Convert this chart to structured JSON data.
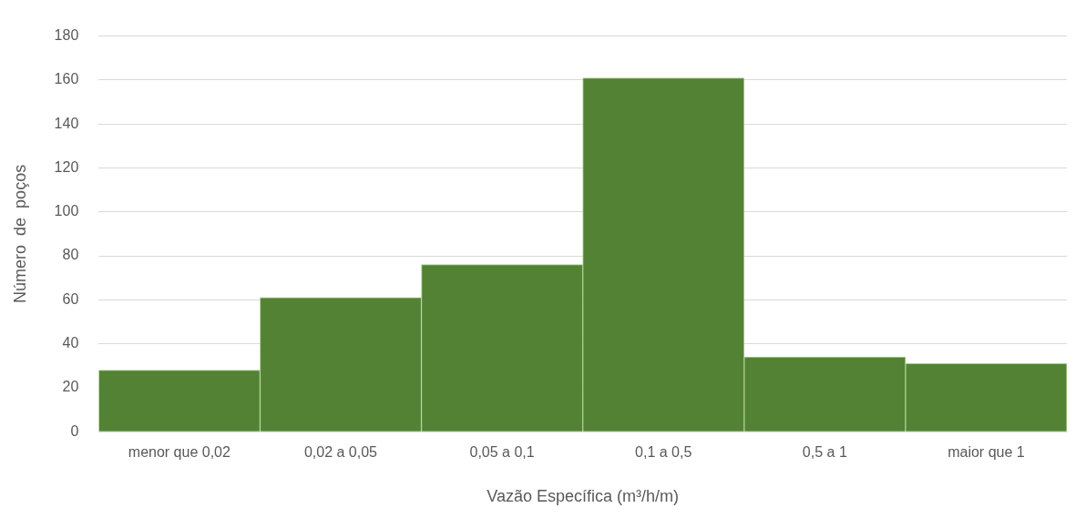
{
  "chart_data": {
    "type": "bar",
    "xlabel": "Vazão Específica (m³/h/m)",
    "ylabel": "Número  de  poços",
    "categories": [
      "menor que 0,02",
      "0,02 a 0,05",
      "0,05 a 0,1",
      "0,1 a 0,5",
      "0,5 a 1",
      "maior que 1"
    ],
    "values": [
      28,
      61,
      76,
      161,
      34,
      31
    ],
    "color": "#548235",
    "ylim": [
      0,
      180
    ],
    "yticks": [
      0,
      20,
      40,
      60,
      80,
      100,
      120,
      140,
      160,
      180
    ],
    "grid": "y",
    "legend": false
  }
}
